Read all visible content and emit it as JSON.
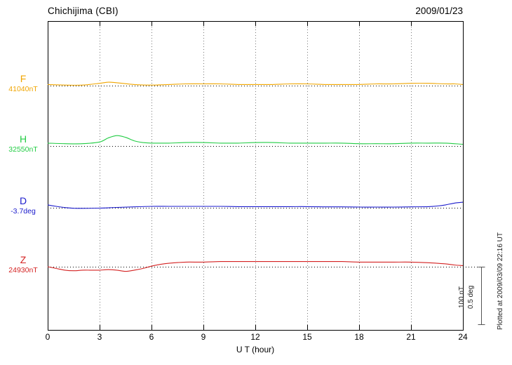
{
  "header": {
    "station": "Chichijima (CBI)",
    "date": "2009/01/23"
  },
  "x_axis": {
    "label": "U T (hour)"
  },
  "scale_bar": {
    "nt_label": "100 nT",
    "deg_label": "0.5 deg"
  },
  "footer": {
    "plotted_at": "Plotted at 2009/03/09 22:16 UT"
  },
  "chart_data": {
    "type": "line",
    "title": "Chichijima (CBI) geomagnetic components, 2009/01/23",
    "xlabel": "U T (hour)",
    "ylabel": "",
    "x_range": [
      0,
      24
    ],
    "x_ticks": [
      0,
      3,
      6,
      9,
      12,
      15,
      18,
      21,
      24
    ],
    "grid": "dotted vertical gridlines every 3 h; dotted horizontal baseline per component",
    "legend_position": "left margin",
    "scale": {
      "nT_per_division": 100,
      "deg_per_division": 0.5
    },
    "series": [
      {
        "name": "F",
        "unit": "nT",
        "baseline_value": 41040,
        "baseline_label": "41040nT",
        "color": "#f0a500",
        "x": [
          0,
          1,
          2,
          3,
          3.5,
          4,
          5,
          6,
          7,
          8,
          9,
          10,
          11,
          12,
          13,
          14,
          15,
          16,
          17,
          18,
          19,
          20,
          21,
          22,
          23,
          23.5,
          24
        ],
        "offsets": [
          2,
          1,
          1,
          4,
          6,
          5,
          2,
          1,
          2,
          3,
          3,
          3,
          2,
          2,
          2,
          3,
          3,
          2,
          2,
          2,
          3,
          3,
          4,
          4,
          3,
          3,
          2
        ]
      },
      {
        "name": "H",
        "unit": "nT",
        "baseline_value": 32550,
        "baseline_label": "32550nT",
        "color": "#22cc44",
        "x": [
          0,
          1,
          2,
          3,
          3.5,
          4,
          4.5,
          5,
          5.5,
          6,
          7,
          8,
          9,
          10,
          11,
          12,
          13,
          14,
          15,
          16,
          17,
          18,
          19,
          20,
          21,
          22,
          23,
          24
        ],
        "offsets": [
          5,
          4,
          4,
          7,
          14,
          18,
          15,
          9,
          6,
          5,
          5,
          6,
          6,
          5,
          5,
          6,
          6,
          5,
          5,
          5,
          5,
          4,
          4,
          4,
          5,
          5,
          5,
          3
        ]
      },
      {
        "name": "D",
        "unit": "deg",
        "baseline_value": -3.7,
        "baseline_label": "-3.7deg",
        "color": "#1a1acc",
        "x": [
          0,
          0.5,
          1,
          1.5,
          2,
          3,
          4,
          5,
          6,
          7,
          8,
          9,
          10,
          11,
          12,
          13,
          14,
          15,
          16,
          17,
          18,
          19,
          20,
          21,
          22,
          22.5,
          23,
          23.5,
          24
        ],
        "offsets": [
          0.025,
          0.012,
          0.002,
          -0.004,
          -0.005,
          -0.003,
          0.003,
          0.008,
          0.012,
          0.012,
          0.012,
          0.012,
          0.012,
          0.01,
          0.01,
          0.01,
          0.01,
          0.01,
          0.008,
          0.008,
          0.006,
          0.006,
          0.006,
          0.008,
          0.01,
          0.015,
          0.025,
          0.04,
          0.048
        ]
      },
      {
        "name": "Z",
        "unit": "nT",
        "baseline_value": 24930,
        "baseline_label": "24930nT",
        "color": "#d42222",
        "x": [
          0,
          0.5,
          1,
          1.5,
          2,
          2.5,
          3,
          3.5,
          4,
          4.5,
          5,
          5.5,
          6,
          6.5,
          7,
          8,
          9,
          10,
          11,
          12,
          13,
          14,
          15,
          16,
          17,
          18,
          19,
          20,
          21,
          22,
          22.5,
          23,
          23.5,
          24
        ],
        "offsets": [
          0,
          -3,
          -6,
          -7,
          -6,
          -6,
          -6,
          -5,
          -6,
          -8,
          -6,
          -3,
          1,
          4,
          6,
          8,
          8,
          9,
          9,
          9,
          9,
          9,
          9,
          9,
          9,
          8,
          8,
          8,
          8,
          7,
          6,
          5,
          3,
          2
        ]
      }
    ]
  }
}
